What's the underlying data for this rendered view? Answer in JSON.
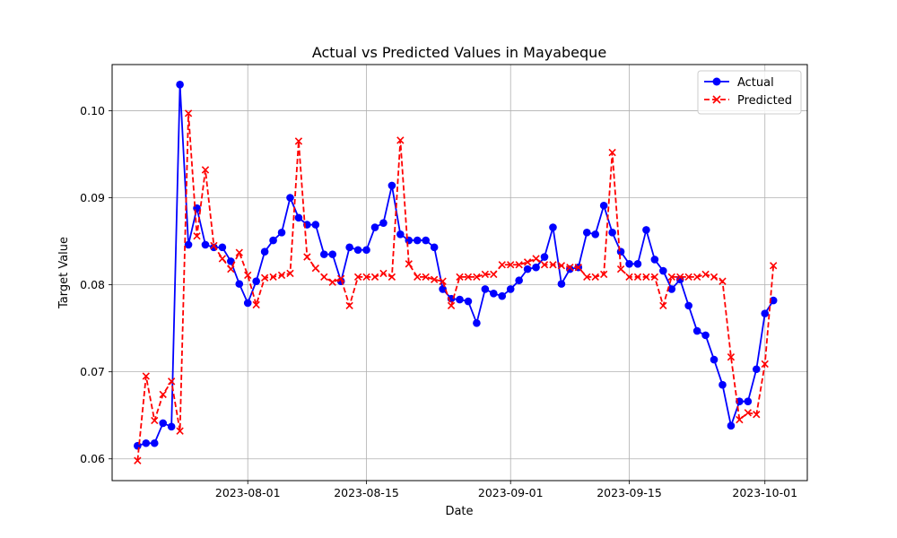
{
  "chart_data": {
    "type": "line",
    "title": "Actual vs Predicted Values in Mayabeque",
    "xlabel": "Date",
    "ylabel": "Target Value",
    "x": [
      "2023-07-19",
      "2023-07-20",
      "2023-07-21",
      "2023-07-22",
      "2023-07-23",
      "2023-07-24",
      "2023-07-25",
      "2023-07-26",
      "2023-07-27",
      "2023-07-28",
      "2023-07-29",
      "2023-07-30",
      "2023-07-31",
      "2023-08-01",
      "2023-08-02",
      "2023-08-03",
      "2023-08-04",
      "2023-08-05",
      "2023-08-06",
      "2023-08-07",
      "2023-08-08",
      "2023-08-09",
      "2023-08-10",
      "2023-08-11",
      "2023-08-12",
      "2023-08-13",
      "2023-08-14",
      "2023-08-15",
      "2023-08-16",
      "2023-08-17",
      "2023-08-18",
      "2023-08-19",
      "2023-08-20",
      "2023-08-21",
      "2023-08-22",
      "2023-08-23",
      "2023-08-24",
      "2023-08-25",
      "2023-08-26",
      "2023-08-27",
      "2023-08-28",
      "2023-08-29",
      "2023-08-30",
      "2023-08-31",
      "2023-09-01",
      "2023-09-02",
      "2023-09-03",
      "2023-09-04",
      "2023-09-05",
      "2023-09-06",
      "2023-09-07",
      "2023-09-08",
      "2023-09-09",
      "2023-09-10",
      "2023-09-11",
      "2023-09-12",
      "2023-09-13",
      "2023-09-14",
      "2023-09-15",
      "2023-09-16",
      "2023-09-17",
      "2023-09-18",
      "2023-09-19",
      "2023-09-20",
      "2023-09-21",
      "2023-09-22",
      "2023-09-23",
      "2023-09-24",
      "2023-09-25",
      "2023-09-26",
      "2023-09-27",
      "2023-09-28",
      "2023-09-29",
      "2023-09-30",
      "2023-10-01",
      "2023-10-02",
      "2023-10-03"
    ],
    "series": [
      {
        "name": "Actual",
        "color": "#0000ff",
        "marker": "circle",
        "line_style": "solid",
        "values": [
          0.0615,
          0.0618,
          0.0618,
          0.0641,
          0.0637,
          0.103,
          0.0846,
          0.0888,
          0.0846,
          0.0843,
          0.0843,
          0.0827,
          0.0801,
          0.0779,
          0.0804,
          0.0838,
          0.0851,
          0.086,
          0.09,
          0.0877,
          0.0869,
          0.0869,
          0.0835,
          0.0835,
          0.0804,
          0.0843,
          0.084,
          0.084,
          0.0866,
          0.0871,
          0.0914,
          0.0858,
          0.0851,
          0.0851,
          0.0851,
          0.0843,
          0.0795,
          0.0784,
          0.0783,
          0.0781,
          0.0756,
          0.0795,
          0.079,
          0.0787,
          0.0795,
          0.0805,
          0.0818,
          0.082,
          0.0832,
          0.0866,
          0.0801,
          0.0818,
          0.082,
          0.086,
          0.0858,
          0.0891,
          0.086,
          0.0838,
          0.0824,
          0.0824,
          0.0863,
          0.0829,
          0.0816,
          0.0795,
          0.0806,
          0.0776,
          0.0747,
          0.0742,
          0.0714,
          0.0685,
          0.0638,
          0.0666,
          0.0666,
          0.0703,
          0.0767,
          0.0782,
          null
        ]
      },
      {
        "name": "Predicted",
        "color": "#ff0000",
        "marker": "x",
        "line_style": "dashed",
        "values": [
          0.0598,
          0.0695,
          0.0644,
          0.0674,
          0.0689,
          0.0632,
          0.0997,
          0.0856,
          0.0932,
          0.0845,
          0.083,
          0.0818,
          0.0837,
          0.0811,
          0.0777,
          0.0808,
          0.0809,
          0.0811,
          0.0813,
          0.0965,
          0.0832,
          0.0819,
          0.0809,
          0.0803,
          0.0807,
          0.0776,
          0.0809,
          0.0809,
          0.0809,
          0.0813,
          0.0809,
          0.0966,
          0.0824,
          0.0809,
          0.0809,
          0.0806,
          0.0804,
          0.0776,
          0.0809,
          0.0809,
          0.0809,
          0.0812,
          0.0812,
          0.0823,
          0.0823,
          0.0823,
          0.0826,
          0.083,
          0.0823,
          0.0823,
          0.0822,
          0.082,
          0.082,
          0.0809,
          0.0809,
          0.0812,
          0.0952,
          0.0818,
          0.0809,
          0.0809,
          0.0809,
          0.0809,
          0.0776,
          0.0809,
          0.0809,
          0.0809,
          0.0809,
          0.0812,
          0.0809,
          0.0804,
          0.0717,
          0.0645,
          0.0653,
          0.0651,
          0.0709,
          0.0822,
          null
        ]
      }
    ],
    "x_ticks": [
      "2023-08-01",
      "2023-08-15",
      "2023-09-01",
      "2023-09-15",
      "2023-10-01"
    ],
    "y_ticks": [
      "0.06",
      "0.07",
      "0.08",
      "0.09",
      "0.10"
    ],
    "ylim": [
      0.0575,
      0.1053
    ],
    "xlim": [
      "2023-07-16",
      "2023-10-06"
    ],
    "grid": true,
    "legend_position": "top-right"
  }
}
